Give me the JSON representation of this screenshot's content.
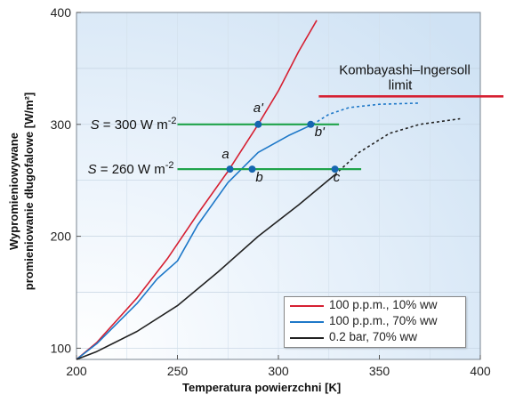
{
  "chart_data": {
    "type": "line",
    "xlabel": "Temperatura powierzchni [K]",
    "ylabel_line1": "Wypromieniowywane",
    "ylabel_line2": "promieniowanie długofalowe [W/m²]",
    "xlim": [
      200,
      400
    ],
    "ylim": [
      90,
      400
    ],
    "xticks": [
      "200",
      "250",
      "300",
      "350",
      "400"
    ],
    "yticks": [
      {
        "v": 100,
        "label": "100"
      },
      {
        "v": 200,
        "label": "200"
      },
      {
        "v": 300,
        "label": "300"
      },
      {
        "v": 400,
        "label": "400"
      }
    ],
    "series": [
      {
        "name": "100 p.p.m., 10% ww",
        "color": "#d62032",
        "solid": [
          [
            200,
            90
          ],
          [
            210,
            105
          ],
          [
            230,
            145
          ],
          [
            245,
            180
          ],
          [
            260,
            220
          ],
          [
            275,
            258
          ],
          [
            290,
            300
          ],
          [
            300,
            330
          ],
          [
            310,
            365
          ],
          [
            319,
            393
          ]
        ],
        "dashed": []
      },
      {
        "name": "100 p.p.m., 70% ww",
        "color": "#1e78c8",
        "solid": [
          [
            200,
            90
          ],
          [
            210,
            104
          ],
          [
            230,
            140
          ],
          [
            240,
            162
          ],
          [
            250,
            178
          ],
          [
            260,
            210
          ],
          [
            275,
            248
          ],
          [
            290,
            275
          ],
          [
            305,
            290
          ],
          [
            317,
            300
          ]
        ],
        "dashed": [
          [
            317,
            300
          ],
          [
            325,
            309
          ],
          [
            335,
            315
          ],
          [
            350,
            318
          ],
          [
            370,
            319
          ]
        ]
      },
      {
        "name": "0.2 bar, 70% ww",
        "color": "#222222",
        "solid": [
          [
            200,
            90
          ],
          [
            210,
            97
          ],
          [
            230,
            115
          ],
          [
            250,
            138
          ],
          [
            270,
            168
          ],
          [
            290,
            200
          ],
          [
            310,
            228
          ],
          [
            328,
            255
          ]
        ],
        "dashed": [
          [
            328,
            255
          ],
          [
            340,
            275
          ],
          [
            355,
            292
          ],
          [
            370,
            300
          ],
          [
            390,
            305
          ]
        ]
      }
    ],
    "annotations": {
      "s300": {
        "prefix": "S",
        "text": " = 300 W m",
        "sup": "-2",
        "y": 300,
        "x1": 250,
        "x2": 330
      },
      "s260": {
        "prefix": "S",
        "text": " = 260 W m",
        "sup": "-2",
        "y": 260,
        "x1": 250,
        "x2": 341
      },
      "limit": {
        "line1": "Kombayashi–Ingersoll",
        "line2": "limit",
        "y": 325,
        "color": "#d62032"
      },
      "points": [
        {
          "label": "a'",
          "x": 290,
          "y": 300,
          "lx": 0,
          "ly": -14
        },
        {
          "label": "b'",
          "x": 316,
          "y": 300,
          "lx": 10,
          "ly": 13
        },
        {
          "label": "a",
          "x": 276,
          "y": 260,
          "lx": -5,
          "ly": -12
        },
        {
          "label": "b",
          "x": 287,
          "y": 260,
          "lx": 8,
          "ly": 14
        },
        {
          "label": "c",
          "x": 328,
          "y": 260,
          "lx": 2,
          "ly": 14
        }
      ],
      "line_color": "#1fa34a",
      "point_color": "#1666b0"
    }
  }
}
